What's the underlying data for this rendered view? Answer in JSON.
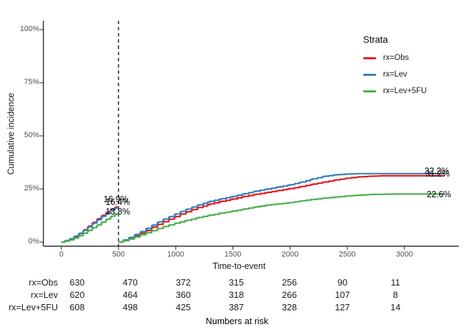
{
  "axes": {
    "x_title": "Time-to-event",
    "y_title": "Cumulative incidence",
    "x_ticks": [
      "0",
      "500",
      "1000",
      "1500",
      "2000",
      "2500",
      "3000"
    ],
    "y_ticks": [
      "0%",
      "25%",
      "50%",
      "75%",
      "100%"
    ]
  },
  "legend": {
    "title": "Strata",
    "items": [
      {
        "label": "rx=Obs",
        "color": "#E41A1C"
      },
      {
        "label": "rx=Lev",
        "color": "#377EB8"
      },
      {
        "label": "rx=Lev+5FU",
        "color": "#4DAF4A"
      }
    ]
  },
  "annotations": {
    "landmark": [
      {
        "text": "16.9%"
      },
      {
        "text": "16.4%"
      },
      {
        "text": "13.8%"
      }
    ],
    "end": [
      {
        "text": "32.2%"
      },
      {
        "text": "31.2%"
      },
      {
        "text": "22.6%"
      }
    ]
  },
  "risk_table": {
    "title": "Numbers at risk",
    "rows": [
      {
        "label": "rx=Obs",
        "values": [
          "630",
          "470",
          "372",
          "315",
          "256",
          "90",
          "11"
        ]
      },
      {
        "label": "rx=Lev",
        "values": [
          "620",
          "464",
          "360",
          "318",
          "266",
          "107",
          "8"
        ]
      },
      {
        "label": "rx=Lev+5FU",
        "values": [
          "608",
          "498",
          "425",
          "387",
          "328",
          "127",
          "14"
        ]
      }
    ]
  },
  "chart_data": {
    "type": "line",
    "title": "",
    "xlabel": "Time-to-event",
    "ylabel": "Cumulative incidence",
    "xlim": [
      0,
      3450
    ],
    "ylim": [
      0,
      105
    ],
    "grid": false,
    "legend_position": "right-top",
    "legend_title": "Strata",
    "x_tick_values": [
      0,
      500,
      1000,
      1500,
      2000,
      2500,
      3000
    ],
    "y_tick_values": [
      0,
      25,
      50,
      75,
      100
    ],
    "landmark_time": 500,
    "series": [
      {
        "name": "rx=Obs",
        "color": "#E41A1C",
        "pct_at_landmark": 16.9,
        "pct_at_end": 31.2,
        "segment1": [
          [
            0,
            0
          ],
          [
            40,
            0.5
          ],
          [
            80,
            1.3
          ],
          [
            120,
            2.5
          ],
          [
            160,
            4
          ],
          [
            200,
            5.8
          ],
          [
            240,
            7.5
          ],
          [
            280,
            9.3
          ],
          [
            320,
            11
          ],
          [
            360,
            12.6
          ],
          [
            400,
            14.2
          ],
          [
            440,
            15.6
          ],
          [
            470,
            16.4
          ],
          [
            500,
            16.9
          ]
        ],
        "segment2": [
          [
            500,
            0
          ],
          [
            550,
            0.8
          ],
          [
            600,
            1.8
          ],
          [
            650,
            3
          ],
          [
            700,
            4.2
          ],
          [
            750,
            5.5
          ],
          [
            800,
            7
          ],
          [
            850,
            8.3
          ],
          [
            900,
            9.6
          ],
          [
            950,
            10.8
          ],
          [
            1000,
            12
          ],
          [
            1050,
            13.2
          ],
          [
            1100,
            14.3
          ],
          [
            1150,
            15.3
          ],
          [
            1200,
            16.3
          ],
          [
            1300,
            18
          ],
          [
            1400,
            19.2
          ],
          [
            1500,
            20.3
          ],
          [
            1600,
            21.5
          ],
          [
            1700,
            22.5
          ],
          [
            1800,
            23.4
          ],
          [
            1900,
            24.3
          ],
          [
            2000,
            25.2
          ],
          [
            2100,
            26.2
          ],
          [
            2200,
            27.3
          ],
          [
            2300,
            28.3
          ],
          [
            2400,
            29.3
          ],
          [
            2500,
            30.1
          ],
          [
            2600,
            30.7
          ],
          [
            2700,
            31
          ],
          [
            2800,
            31.2
          ],
          [
            3350,
            31.2
          ]
        ]
      },
      {
        "name": "rx=Lev",
        "color": "#377EB8",
        "pct_at_landmark": 16.4,
        "pct_at_end": 32.2,
        "segment1": [
          [
            0,
            0
          ],
          [
            40,
            0.7
          ],
          [
            80,
            1.6
          ],
          [
            120,
            2.8
          ],
          [
            160,
            4.2
          ],
          [
            200,
            5.6
          ],
          [
            240,
            7.2
          ],
          [
            280,
            8.9
          ],
          [
            320,
            10.5
          ],
          [
            360,
            12.1
          ],
          [
            400,
            13.7
          ],
          [
            440,
            15.2
          ],
          [
            470,
            16
          ],
          [
            500,
            16.4
          ]
        ],
        "segment2": [
          [
            500,
            0
          ],
          [
            550,
            1
          ],
          [
            600,
            2.2
          ],
          [
            650,
            3.6
          ],
          [
            700,
            5
          ],
          [
            750,
            6.5
          ],
          [
            800,
            8
          ],
          [
            850,
            9.5
          ],
          [
            900,
            10.8
          ],
          [
            950,
            12
          ],
          [
            1000,
            13.2
          ],
          [
            1050,
            14.4
          ],
          [
            1100,
            15.5
          ],
          [
            1150,
            16.5
          ],
          [
            1200,
            17.5
          ],
          [
            1300,
            19.2
          ],
          [
            1400,
            20.4
          ],
          [
            1500,
            21.5
          ],
          [
            1600,
            22.8
          ],
          [
            1700,
            24
          ],
          [
            1800,
            25
          ],
          [
            1900,
            26
          ],
          [
            2000,
            27
          ],
          [
            2100,
            28.3
          ],
          [
            2200,
            29.8
          ],
          [
            2300,
            31
          ],
          [
            2400,
            31.7
          ],
          [
            2500,
            32
          ],
          [
            2600,
            32.2
          ],
          [
            3350,
            32.2
          ]
        ]
      },
      {
        "name": "rx=Lev+5FU",
        "color": "#4DAF4A",
        "pct_at_landmark": 13.8,
        "pct_at_end": 22.6,
        "segment1": [
          [
            0,
            0
          ],
          [
            40,
            0.4
          ],
          [
            80,
            1
          ],
          [
            120,
            1.9
          ],
          [
            160,
            3
          ],
          [
            200,
            4.2
          ],
          [
            240,
            5.5
          ],
          [
            280,
            6.8
          ],
          [
            320,
            8.1
          ],
          [
            360,
            9.4
          ],
          [
            400,
            10.8
          ],
          [
            440,
            12.2
          ],
          [
            470,
            13.1
          ],
          [
            500,
            13.8
          ]
        ],
        "segment2": [
          [
            500,
            0
          ],
          [
            550,
            0.6
          ],
          [
            600,
            1.4
          ],
          [
            650,
            2.4
          ],
          [
            700,
            3.4
          ],
          [
            750,
            4.4
          ],
          [
            800,
            5.4
          ],
          [
            850,
            6.4
          ],
          [
            900,
            7.3
          ],
          [
            950,
            8.1
          ],
          [
            1000,
            8.9
          ],
          [
            1100,
            10.3
          ],
          [
            1200,
            11.6
          ],
          [
            1300,
            12.7
          ],
          [
            1400,
            13.7
          ],
          [
            1500,
            14.6
          ],
          [
            1600,
            15.6
          ],
          [
            1700,
            16.6
          ],
          [
            1800,
            17.4
          ],
          [
            1900,
            18
          ],
          [
            2000,
            18.6
          ],
          [
            2100,
            19.4
          ],
          [
            2200,
            20.1
          ],
          [
            2300,
            20.7
          ],
          [
            2400,
            21.2
          ],
          [
            2500,
            21.7
          ],
          [
            2600,
            22.1
          ],
          [
            2700,
            22.4
          ],
          [
            2900,
            22.6
          ],
          [
            3350,
            22.6
          ]
        ]
      }
    ]
  }
}
